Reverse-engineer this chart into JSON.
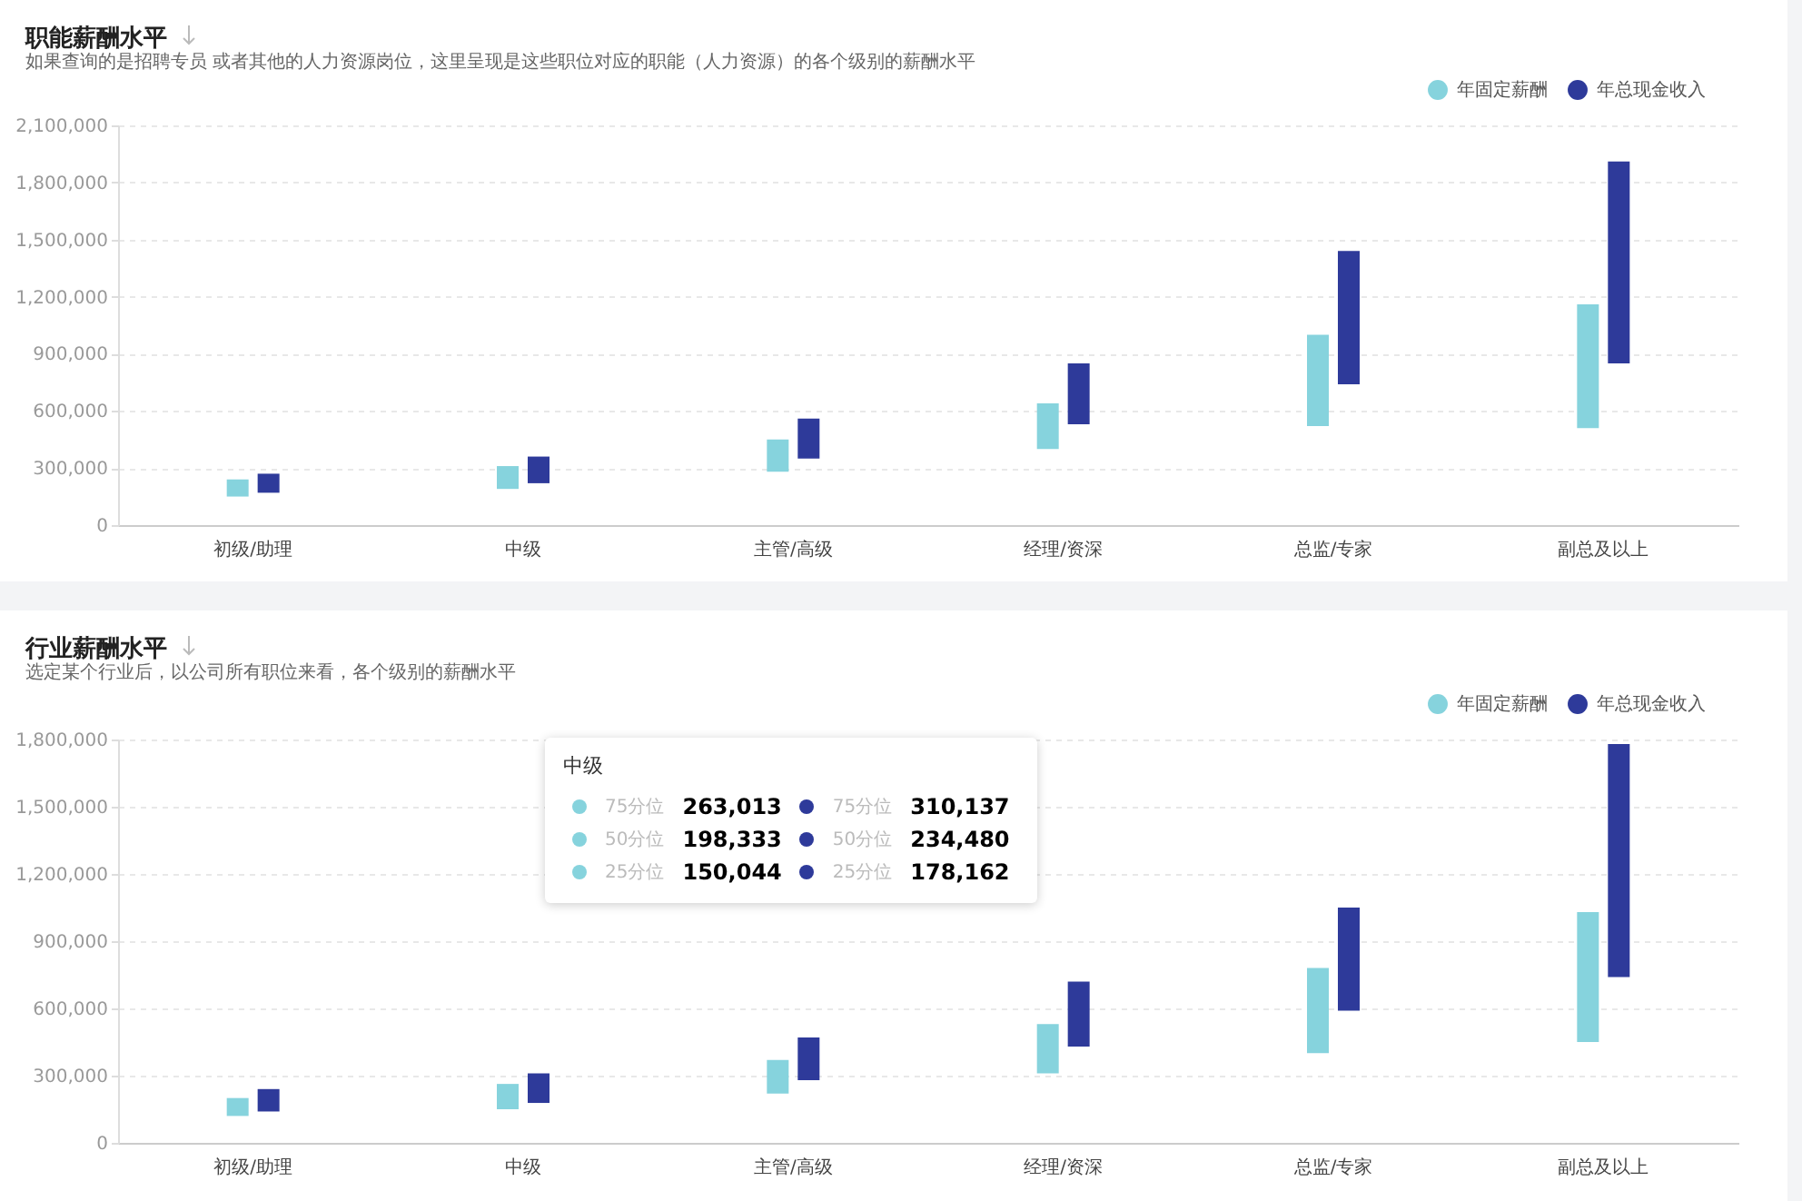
{
  "chart_data": [
    {
      "type": "bar",
      "title": "职能薪酬水平",
      "subtitle": "如果查询的是招聘专员 或者其他的人力资源岗位，这里呈现是这些职位对应的职能（人力资源）的各个级别的薪酬水平",
      "categories": [
        "初级/助理",
        "中级",
        "主管/高级",
        "经理/资深",
        "总监/专家",
        "副总及以上"
      ],
      "series": [
        {
          "name": "年固定薪酬",
          "color": "#86d3dd",
          "base": [
            150000,
            190000,
            280000,
            400000,
            520000,
            510000
          ],
          "values": [
            90000,
            120000,
            170000,
            240000,
            480000,
            650000
          ]
        },
        {
          "name": "年总现金收入",
          "color": "#2e3a9a",
          "base": [
            170000,
            220000,
            350000,
            530000,
            740000,
            850000
          ],
          "values": [
            100000,
            140000,
            210000,
            320000,
            700000,
            1060000
          ]
        }
      ],
      "ylim": [
        0,
        2100000
      ],
      "yticks": [
        {
          "value": 0,
          "label": "0"
        },
        {
          "value": 300000,
          "label": "300,000"
        },
        {
          "value": 600000,
          "label": "600,000"
        },
        {
          "value": 900000,
          "label": "900,000"
        },
        {
          "value": 1200000,
          "label": "1,200,000"
        },
        {
          "value": 1500000,
          "label": "1,500,000"
        },
        {
          "value": 1800000,
          "label": "1,800,000"
        },
        {
          "value": 2100000,
          "label": "2,100,000"
        }
      ],
      "grid": "y",
      "legend": "top right"
    },
    {
      "type": "bar",
      "title": "行业薪酬水平",
      "subtitle": "选定某个行业后，以公司所有职位来看，各个级别的薪酬水平",
      "categories": [
        "初级/助理",
        "中级",
        "主管/高级",
        "经理/资深",
        "总监/专家",
        "副总及以上"
      ],
      "series": [
        {
          "name": "年固定薪酬",
          "color": "#86d3dd",
          "base": [
            120000,
            150044,
            220000,
            310000,
            400000,
            450000
          ],
          "values": [
            80000,
            112969,
            150000,
            220000,
            380000,
            580000
          ]
        },
        {
          "name": "年总现金收入",
          "color": "#2e3a9a",
          "base": [
            140000,
            178162,
            280000,
            430000,
            590000,
            740000
          ],
          "values": [
            100000,
            131975,
            190000,
            290000,
            460000,
            1040000
          ]
        }
      ],
      "ylim": [
        0,
        1800000
      ],
      "yticks": [
        {
          "value": 0,
          "label": "0"
        },
        {
          "value": 300000,
          "label": "300,000"
        },
        {
          "value": 600000,
          "label": "600,000"
        },
        {
          "value": 900000,
          "label": "900,000"
        },
        {
          "value": 1200000,
          "label": "1,200,000"
        },
        {
          "value": 1500000,
          "label": "1,500,000"
        },
        {
          "value": 1800000,
          "label": "1,800,000"
        }
      ],
      "grid": "y",
      "legend": "top right",
      "annotations": [
        "中级",
        "75分位",
        "263,013",
        "50分位",
        "198,333",
        "25分位",
        "150,044",
        "75分位",
        "310,137",
        "50分位",
        "234,480",
        "25分位",
        "178,162"
      ]
    }
  ]
}
